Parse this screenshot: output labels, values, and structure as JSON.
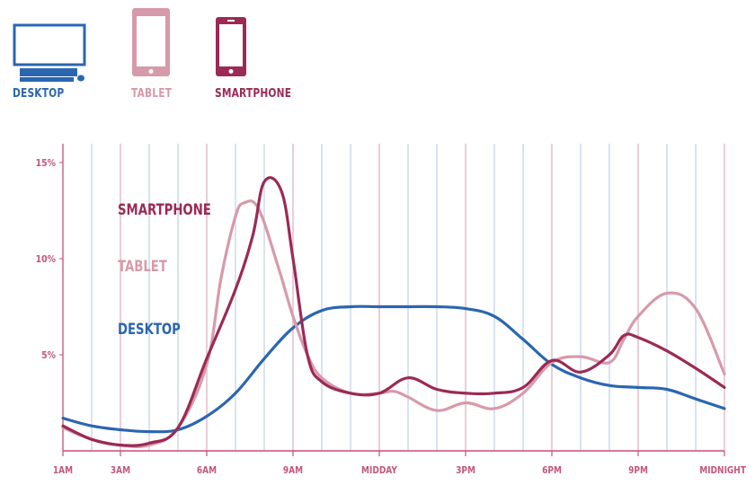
{
  "legend": {
    "items": [
      {
        "label": "DESKTOP",
        "icon": "desktop-monitor-icon",
        "color": "#2b66b0"
      },
      {
        "label": "TABLET",
        "icon": "tablet-icon",
        "color": "#d79aaa"
      },
      {
        "label": "SMARTPHONE",
        "icon": "smartphone-icon",
        "color": "#9b2a55"
      }
    ]
  },
  "colors": {
    "desktop": "#2b66b0",
    "tablet": "#d79aaa",
    "smartphone": "#9b2a55",
    "tick_text": "#c2577a",
    "grid": "#c9d7e6",
    "axis": "#c94f72"
  },
  "chart_data": {
    "type": "line",
    "title": "",
    "xlabel": "",
    "ylabel": "",
    "grid": true,
    "x_tick_labels": [
      "1AM",
      "3AM",
      "6AM",
      "9AM",
      "MIDDAY",
      "3PM",
      "6PM",
      "9PM",
      "MIDNIGHT"
    ],
    "x_tick_hours": [
      1,
      3,
      6,
      9,
      12,
      15,
      18,
      21,
      24
    ],
    "y_tick_labels": [
      "15%",
      "10%",
      "5%"
    ],
    "y_tick_values": [
      15,
      10,
      5
    ],
    "xlim": [
      1,
      24
    ],
    "ylim": [
      0,
      15
    ],
    "series": [
      {
        "name": "SMARTPHONE",
        "color": "#9b2a55",
        "x": [
          1,
          2,
          3,
          4,
          5,
          6,
          7,
          7.6,
          8,
          8.6,
          9,
          9.5,
          10,
          11,
          12,
          13,
          14,
          15,
          16,
          17,
          18,
          19,
          20,
          20.5,
          21,
          22,
          23,
          24
        ],
        "values": [
          1.3,
          0.6,
          0.3,
          0.4,
          1.2,
          4.8,
          8.4,
          11.2,
          14.0,
          13.5,
          10.0,
          5.0,
          3.6,
          3.0,
          3.0,
          3.8,
          3.2,
          3.0,
          3.0,
          3.3,
          4.7,
          4.1,
          5.0,
          6.0,
          5.9,
          5.2,
          4.3,
          3.3
        ]
      },
      {
        "name": "TABLET",
        "color": "#d79aaa",
        "x": [
          1,
          2,
          3,
          4,
          5,
          6,
          6.5,
          7,
          7.3,
          7.8,
          8.5,
          9,
          9.5,
          10,
          11,
          12,
          12.5,
          13,
          14,
          15,
          16,
          17,
          18,
          19,
          20,
          20.5,
          21,
          22,
          23,
          24
        ],
        "values": [
          1.2,
          0.6,
          0.3,
          0.3,
          1.2,
          4.5,
          9.0,
          12.2,
          12.9,
          12.6,
          9.5,
          7.0,
          5.0,
          3.8,
          3.0,
          3.0,
          3.1,
          2.8,
          2.1,
          2.5,
          2.2,
          3.0,
          4.6,
          4.9,
          4.6,
          5.8,
          7.0,
          8.2,
          7.4,
          4.0
        ]
      },
      {
        "name": "DESKTOP",
        "color": "#2b66b0",
        "x": [
          1,
          2,
          3,
          4,
          5,
          6,
          7,
          8,
          9,
          10,
          11,
          12,
          13,
          14,
          15,
          16,
          17,
          18,
          19,
          20,
          21,
          22,
          23,
          24
        ],
        "values": [
          1.7,
          1.3,
          1.1,
          1.0,
          1.1,
          1.8,
          3.0,
          4.8,
          6.4,
          7.3,
          7.5,
          7.5,
          7.5,
          7.5,
          7.4,
          7.0,
          5.8,
          4.5,
          3.8,
          3.4,
          3.3,
          3.2,
          2.7,
          2.2
        ]
      }
    ],
    "annotations": [
      {
        "text": "SMARTPHONE",
        "series": "SMARTPHONE"
      },
      {
        "text": "TABLET",
        "series": "TABLET"
      },
      {
        "text": "DESKTOP",
        "series": "DESKTOP"
      }
    ]
  }
}
